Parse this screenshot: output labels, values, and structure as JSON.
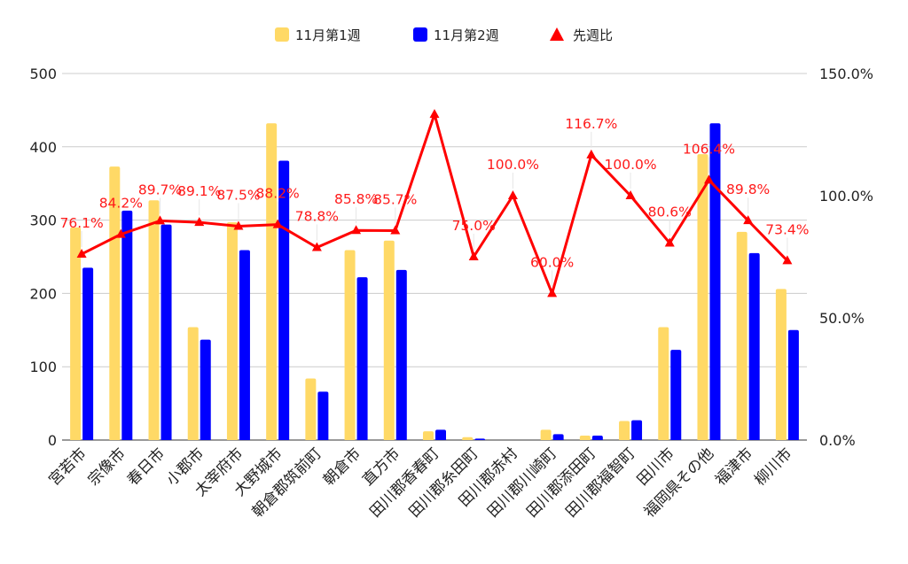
{
  "chart_data": {
    "type": "bar",
    "categories": [
      "宮若市",
      "宗像市",
      "春日市",
      "小郡市",
      "太宰府市",
      "大野城市",
      "朝倉郡筑前町",
      "朝倉市",
      "直方市",
      "田川郡香春町",
      "田川郡糸田町",
      "田川郡赤村",
      "田川郡川崎町",
      "田川郡添田町",
      "田川郡福智町",
      "田川市",
      "福岡県その他",
      "福津市",
      "柳川市"
    ],
    "series": [
      {
        "name": "11月第1週",
        "kind": "bar",
        "axis": "left",
        "color": "#ffd966",
        "values": [
          290,
          373,
          327,
          154,
          297,
          432,
          84,
          259,
          272,
          12,
          4,
          0,
          14,
          6,
          26,
          154,
          390,
          284,
          206
        ]
      },
      {
        "name": "11月第2週",
        "kind": "bar",
        "axis": "left",
        "color": "#0000ff",
        "values": [
          235,
          313,
          294,
          137,
          259,
          381,
          66,
          222,
          232,
          14,
          2,
          0,
          8,
          6,
          27,
          123,
          432,
          255,
          150
        ]
      },
      {
        "name": "先週比",
        "kind": "line",
        "axis": "right",
        "color": "#ff0000",
        "marker": "triangle",
        "values": [
          76.1,
          84.2,
          89.7,
          89.1,
          87.5,
          88.2,
          78.8,
          85.8,
          85.7,
          133.3,
          75.0,
          100.0,
          60.0,
          116.7,
          100.0,
          80.6,
          106.4,
          89.8,
          73.4
        ],
        "labels": [
          "76.1%",
          "84.2%",
          "89.7%",
          "89.1%",
          "87.5%",
          "88.2%",
          "78.8%",
          "85.8%",
          "85.7%",
          "",
          "75.0%",
          "100.0%",
          "60.0%",
          "116.7%",
          "100.0%",
          "80.6%",
          "106.4%",
          "89.8%",
          "73.4%"
        ]
      }
    ],
    "legend": {
      "position": "top-center",
      "items": [
        "11月第1週",
        "11月第2週",
        "先週比"
      ]
    },
    "ylim": [
      0,
      500
    ],
    "yticks": [
      "0",
      "100",
      "200",
      "300",
      "400",
      "500"
    ],
    "y2lim": [
      0,
      150
    ],
    "y2ticks": [
      "0.0%",
      "50.0%",
      "100.0%",
      "150.0%"
    ],
    "grid": true
  }
}
